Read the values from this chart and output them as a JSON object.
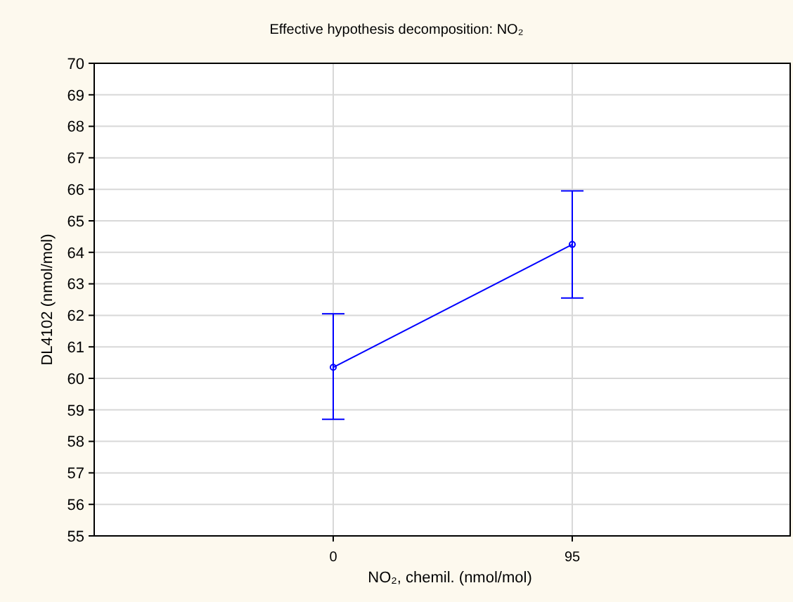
{
  "chart_data": {
    "type": "line",
    "title": "Effective hypothesis decomposition: NO₂",
    "xlabel": "NO₂, chemil. (nmol/mol)",
    "ylabel": "DL4102 (nmol/mol)",
    "categories": [
      "0",
      "95"
    ],
    "series": [
      {
        "color": "#0000ff",
        "values": [
          60.35,
          64.25
        ],
        "errors": [
          [
            58.7,
            62.05
          ],
          [
            62.55,
            65.95
          ]
        ]
      }
    ],
    "ylim": [
      55,
      70
    ],
    "yticks": [
      55,
      56,
      57,
      58,
      59,
      60,
      61,
      62,
      63,
      64,
      65,
      66,
      67,
      68,
      69,
      70
    ],
    "grid": true,
    "marker": "circle",
    "line_style": "solid"
  }
}
